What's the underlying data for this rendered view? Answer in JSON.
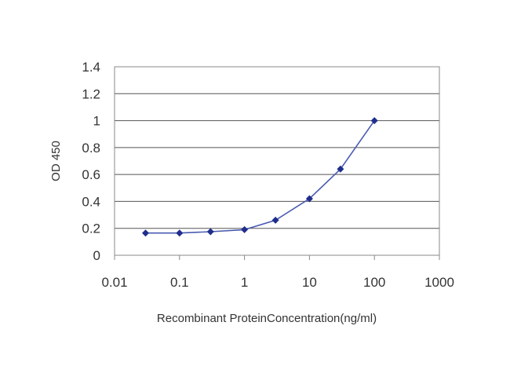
{
  "chart_data": {
    "type": "line",
    "title": "",
    "xlabel": "Recombinant ProteinConcentration(ng/ml)",
    "ylabel": "OD 450",
    "x_scale": "log",
    "xlim": [
      0.01,
      1000
    ],
    "ylim": [
      0,
      1.4
    ],
    "x_ticks": [
      "0.01",
      "0.1",
      "1",
      "10",
      "100",
      "1000"
    ],
    "y_ticks": [
      "0",
      "0.2",
      "0.4",
      "0.6",
      "0.8",
      "1",
      "1.2",
      "1.4"
    ],
    "grid": "horizontal",
    "series": [
      {
        "x": [
          0.03,
          0.1,
          0.3,
          1,
          3,
          10,
          30,
          100
        ],
        "y": [
          0.165,
          0.165,
          0.175,
          0.19,
          0.26,
          0.42,
          0.64,
          1.0
        ]
      }
    ],
    "colors": {
      "line": "#4a5bb0",
      "marker": "#1f2e8c",
      "grid": "#555555",
      "frame": "#888888"
    }
  }
}
